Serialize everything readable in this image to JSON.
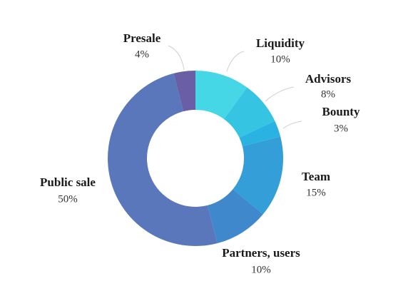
{
  "chart_data": {
    "type": "donut",
    "categories": [
      "Liquidity",
      "Advisors",
      "Bounty",
      "Team",
      "Partners, users",
      "Public sale",
      "Presale"
    ],
    "values": [
      10,
      8,
      3,
      15,
      10,
      50,
      4
    ],
    "value_labels": [
      "10%",
      "8%",
      "3%",
      "15%",
      "10%",
      "50%",
      "4%"
    ],
    "colors": [
      "#45d7e6",
      "#35c4e2",
      "#2ab3e2",
      "#349ed8",
      "#3f88cb",
      "#5b77bb",
      "#6a5ea7"
    ]
  }
}
